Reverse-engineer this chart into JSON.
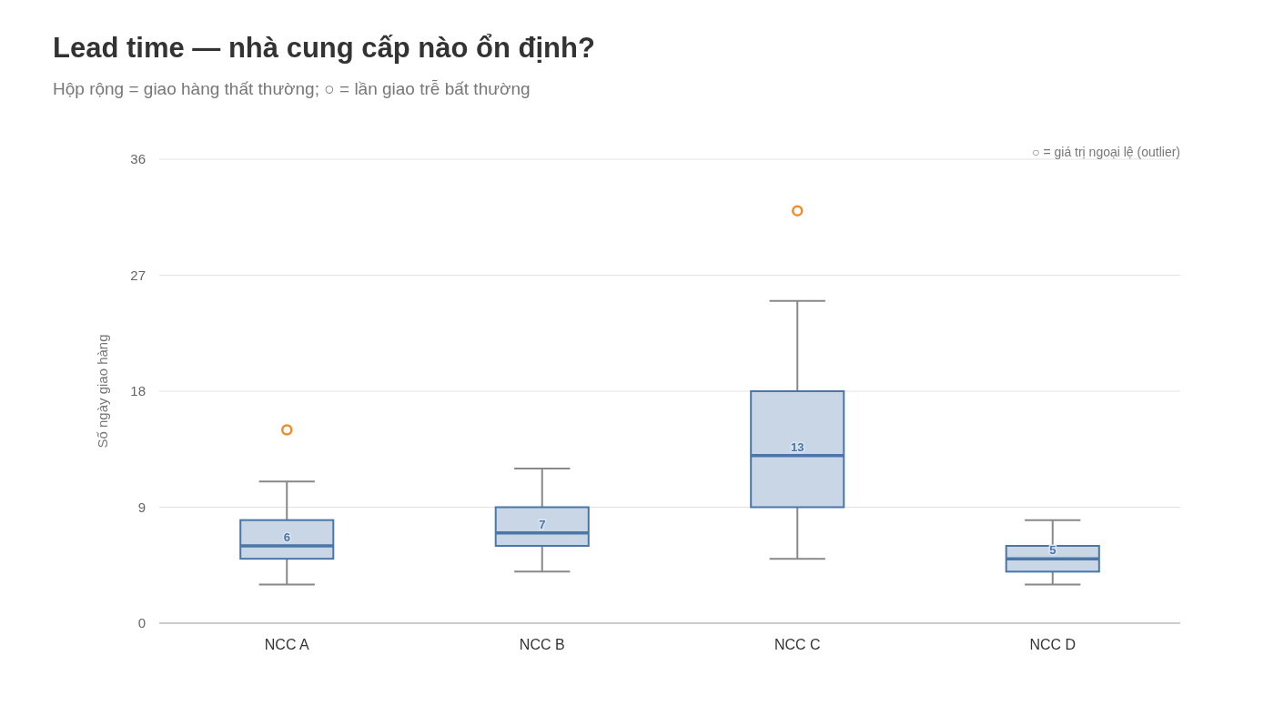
{
  "chart_data": {
    "type": "box",
    "title": "Lead time — nhà cung cấp nào ổn định?",
    "subtitle": "Hộp rộng = giao hàng thất thường; ○ = lần giao trễ bất thường",
    "ylabel": "Số ngày giao hàng",
    "annotations": [
      "○ = giá trị ngoại lệ (outlier)"
    ],
    "categories": [
      "NCC A",
      "NCC B",
      "NCC C",
      "NCC D"
    ],
    "series": [
      {
        "color": "#4a76a8",
        "value_labels": [
          "6",
          "7",
          "13",
          "5"
        ],
        "boxes": [
          {
            "low": 3,
            "q1": 5,
            "median": 6,
            "q3": 8,
            "high": 11,
            "outliers": [
              15
            ]
          },
          {
            "low": 4,
            "q1": 6,
            "median": 7,
            "q3": 9,
            "high": 12
          },
          {
            "low": 5,
            "q1": 9,
            "median": 13,
            "q3": 18,
            "high": 25,
            "outliers": [
              32
            ]
          },
          {
            "low": 3,
            "q1": 4,
            "median": 5,
            "q3": 6,
            "high": 8
          }
        ]
      }
    ],
    "ylim": [
      0,
      36
    ],
    "yticks": [
      0,
      9,
      18,
      27,
      36
    ],
    "grid": "y"
  }
}
